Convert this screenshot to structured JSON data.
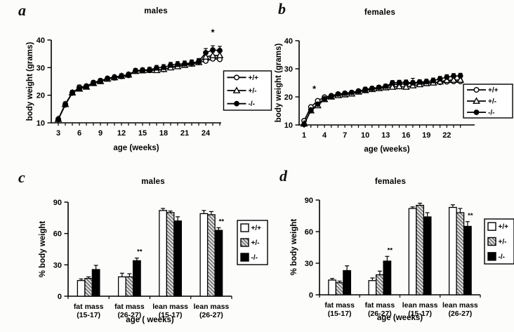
{
  "figure": {
    "panels": {
      "a": {
        "letter": "a",
        "title": "males"
      },
      "b": {
        "letter": "b",
        "title": "females"
      },
      "c": {
        "letter": "c",
        "title": "males"
      },
      "d": {
        "letter": "d",
        "title": "females"
      }
    },
    "colors": {
      "ink": "#000000",
      "paper": "#fcfcfa",
      "hatch_bg": "#d9d9d9"
    }
  },
  "chart_data": [
    {
      "id": "a",
      "type": "line",
      "title": "males",
      "xlabel": "age (weeks)",
      "ylabel": "body weight (grams)",
      "xlim": [
        2,
        26.2
      ],
      "ylim": [
        10,
        40
      ],
      "yticks": [
        10,
        20,
        30,
        40
      ],
      "xticks": [
        3,
        6,
        9,
        12,
        15,
        18,
        21,
        24
      ],
      "legend_position": "right",
      "x": [
        3,
        4,
        5,
        6,
        7,
        8,
        9,
        10,
        11,
        12,
        13,
        14,
        15,
        16,
        17,
        18,
        19,
        20,
        21,
        22,
        23,
        24,
        25,
        26
      ],
      "series": [
        {
          "name": "+/+",
          "marker": "circle-open",
          "values": [
            11.2,
            16.5,
            20.8,
            22.9,
            23.3,
            24.6,
            25.3,
            26,
            26.3,
            26.8,
            27.2,
            28.8,
            29,
            29,
            29.2,
            29.3,
            30.2,
            30.6,
            31,
            31.3,
            31.9,
            32.4,
            33.2,
            33
          ],
          "errors": [
            0.5,
            0.8,
            0.8,
            0.8,
            0.7,
            0.7,
            0.7,
            0.7,
            0.7,
            0.8,
            0.8,
            0.8,
            0.8,
            0.9,
            0.9,
            1,
            1,
            1,
            1,
            1.1,
            1.1,
            1.2,
            1.3,
            1.2
          ]
        },
        {
          "name": "+/-",
          "marker": "triangle-open",
          "values": [
            11.3,
            16.7,
            20.9,
            22.3,
            23,
            24.3,
            25,
            25.9,
            26.4,
            26.9,
            27.4,
            28.7,
            28.9,
            29.1,
            29,
            29.4,
            30,
            30.4,
            30.9,
            31.4,
            31.9,
            33.9,
            34.4,
            34.4
          ],
          "errors": [
            0.5,
            0.8,
            0.8,
            0.8,
            0.7,
            0.7,
            0.7,
            0.7,
            0.7,
            0.8,
            0.8,
            0.8,
            0.8,
            0.9,
            0.9,
            1,
            1,
            1,
            1,
            1.1,
            1.1,
            1.2,
            1.2,
            1.2
          ]
        },
        {
          "name": "-/-",
          "marker": "circle-filled",
          "values": [
            11.4,
            16.8,
            21,
            22.4,
            23.1,
            24.4,
            25.2,
            26.1,
            26.6,
            27,
            27.5,
            28.9,
            29.1,
            29.2,
            29.9,
            30.1,
            30.9,
            31.2,
            31.4,
            31.7,
            32.2,
            35.4,
            36.4,
            36.2
          ],
          "errors": [
            0.5,
            0.8,
            0.8,
            0.8,
            0.7,
            0.7,
            0.7,
            0.7,
            0.7,
            0.8,
            0.8,
            0.8,
            0.8,
            0.9,
            0.9,
            1,
            1,
            1,
            1,
            1.1,
            1.1,
            1.5,
            1.5,
            1.5
          ]
        }
      ],
      "annotations": [
        {
          "text": "*",
          "x": 25,
          "y": 41.6
        }
      ]
    },
    {
      "id": "b",
      "type": "line",
      "title": "females",
      "xlabel": "age (weeks)",
      "ylabel": "body weight (grams)",
      "xlim": [
        0.27,
        26.1
      ],
      "ylim": [
        10,
        40
      ],
      "yticks": [
        10,
        20,
        30,
        40
      ],
      "xticks": [
        1,
        4,
        7,
        10,
        13,
        16,
        19,
        22
      ],
      "legend_position": "right",
      "x": [
        1,
        2,
        3,
        4,
        5,
        6,
        7,
        8,
        9,
        10,
        11,
        12,
        13,
        14,
        15,
        16,
        17,
        18,
        19,
        20,
        21,
        22,
        23,
        24
      ],
      "series": [
        {
          "name": "+/+",
          "marker": "circle-open",
          "values": [
            11.5,
            16.4,
            18.6,
            19.9,
            20.4,
            21,
            21.2,
            21.5,
            22,
            22.7,
            23,
            23.2,
            23.5,
            24.4,
            24.5,
            24.7,
            24.8,
            25,
            25,
            25.1,
            25.2,
            25.4,
            25.5,
            25.5
          ],
          "errors": [
            0.5,
            0.6,
            0.6,
            0.6,
            0.6,
            0.6,
            0.6,
            0.6,
            0.6,
            0.7,
            0.7,
            0.7,
            0.7,
            0.8,
            0.8,
            0.8,
            0.8,
            0.8,
            0.9,
            0.9,
            1.4,
            0.9,
            0.9,
            0.9
          ]
        },
        {
          "name": "+/-",
          "marker": "triangle-open",
          "values": [
            10.4,
            15.1,
            16.9,
            19.1,
            20,
            20.5,
            20.8,
            21.1,
            21.8,
            22.3,
            22.7,
            23,
            23.3,
            23.5,
            23.7,
            23.5,
            24,
            24.4,
            24.8,
            25,
            25.4,
            25.9,
            26,
            26
          ],
          "errors": [
            0.5,
            0.6,
            0.6,
            0.6,
            0.6,
            0.6,
            0.6,
            0.6,
            0.6,
            0.7,
            0.7,
            0.7,
            0.7,
            0.8,
            0.8,
            0.8,
            2.6,
            0.8,
            0.8,
            0.9,
            0.9,
            0.9,
            0.9,
            0.9
          ]
        },
        {
          "name": "-/-",
          "marker": "circle-filled",
          "values": [
            10.2,
            15.3,
            17.4,
            19.3,
            20.2,
            21,
            21.3,
            21.6,
            22.1,
            22.5,
            23,
            23.4,
            23.8,
            25,
            25.1,
            25.2,
            25,
            25.3,
            25.4,
            25.8,
            26.4,
            27,
            27.4,
            27.5
          ],
          "errors": [
            0.5,
            0.6,
            0.6,
            0.6,
            0.6,
            0.6,
            0.6,
            0.6,
            0.6,
            0.7,
            0.7,
            0.7,
            0.7,
            0.8,
            0.8,
            0.8,
            0.8,
            0.8,
            0.9,
            0.9,
            0.9,
            0.9,
            0.9,
            0.9
          ]
        }
      ],
      "annotations": [
        {
          "text": "*",
          "x": 2.5,
          "y": 21.8
        }
      ]
    },
    {
      "id": "c",
      "type": "bar",
      "title": "males",
      "xlabel": "age ( weeks)",
      "ylabel": "% body weight",
      "ylim": [
        0,
        90
      ],
      "yticks": [
        0,
        30,
        60,
        90
      ],
      "legend_position": "right",
      "categories": [
        {
          "label": "fat mass",
          "sub": "(15-17)"
        },
        {
          "label": "fat mass",
          "sub": "(26-27)"
        },
        {
          "label": "lean mass",
          "sub": "(15-17)"
        },
        {
          "label": "lean mass",
          "sub": "(26-27)"
        }
      ],
      "series": [
        {
          "name": "+/+",
          "fill": "white",
          "values": [
            15,
            18.5,
            82,
            79
          ],
          "errors": [
            1.5,
            3.5,
            2,
            3
          ]
        },
        {
          "name": "+/-",
          "fill": "hatch",
          "values": [
            17,
            18.5,
            80,
            78
          ],
          "errors": [
            1.5,
            3,
            1.5,
            3
          ]
        },
        {
          "name": "-/-",
          "fill": "black",
          "values": [
            25.5,
            34,
            72,
            63
          ],
          "errors": [
            4,
            2.5,
            4,
            2.5
          ]
        }
      ],
      "annotations": [
        {
          "text": "**",
          "category": 1,
          "series": 2
        },
        {
          "text": "**",
          "category": 3,
          "series": 2
        }
      ]
    },
    {
      "id": "d",
      "type": "bar",
      "title": "females",
      "xlabel": "age (weeks)",
      "ylabel": "% body weight",
      "ylim": [
        0,
        90
      ],
      "yticks": [
        0,
        30,
        60,
        90
      ],
      "legend_position": "right",
      "categories": [
        {
          "label": "fat mass",
          "sub": "(15-17)"
        },
        {
          "label": "fat mass",
          "sub": "(26-27)"
        },
        {
          "label": "lean mass",
          "sub": "(15-17)"
        },
        {
          "label": "lean mass",
          "sub": "(26-27)"
        }
      ],
      "series": [
        {
          "name": "+/+",
          "fill": "white",
          "values": [
            14,
            13.5,
            82,
            83
          ],
          "errors": [
            1.5,
            2.5,
            1.5,
            2.5
          ]
        },
        {
          "name": "+/-",
          "fill": "hatch",
          "values": [
            11.5,
            19,
            85,
            78
          ],
          "errors": [
            1.5,
            3.5,
            2,
            4
          ]
        },
        {
          "name": "-/-",
          "fill": "black",
          "values": [
            23,
            32,
            74,
            65
          ],
          "errors": [
            4.5,
            4.5,
            4,
            4.5
          ]
        }
      ],
      "annotations": [
        {
          "text": "**",
          "category": 1,
          "series": 2
        },
        {
          "text": "**",
          "category": 3,
          "series": 2
        }
      ]
    }
  ]
}
